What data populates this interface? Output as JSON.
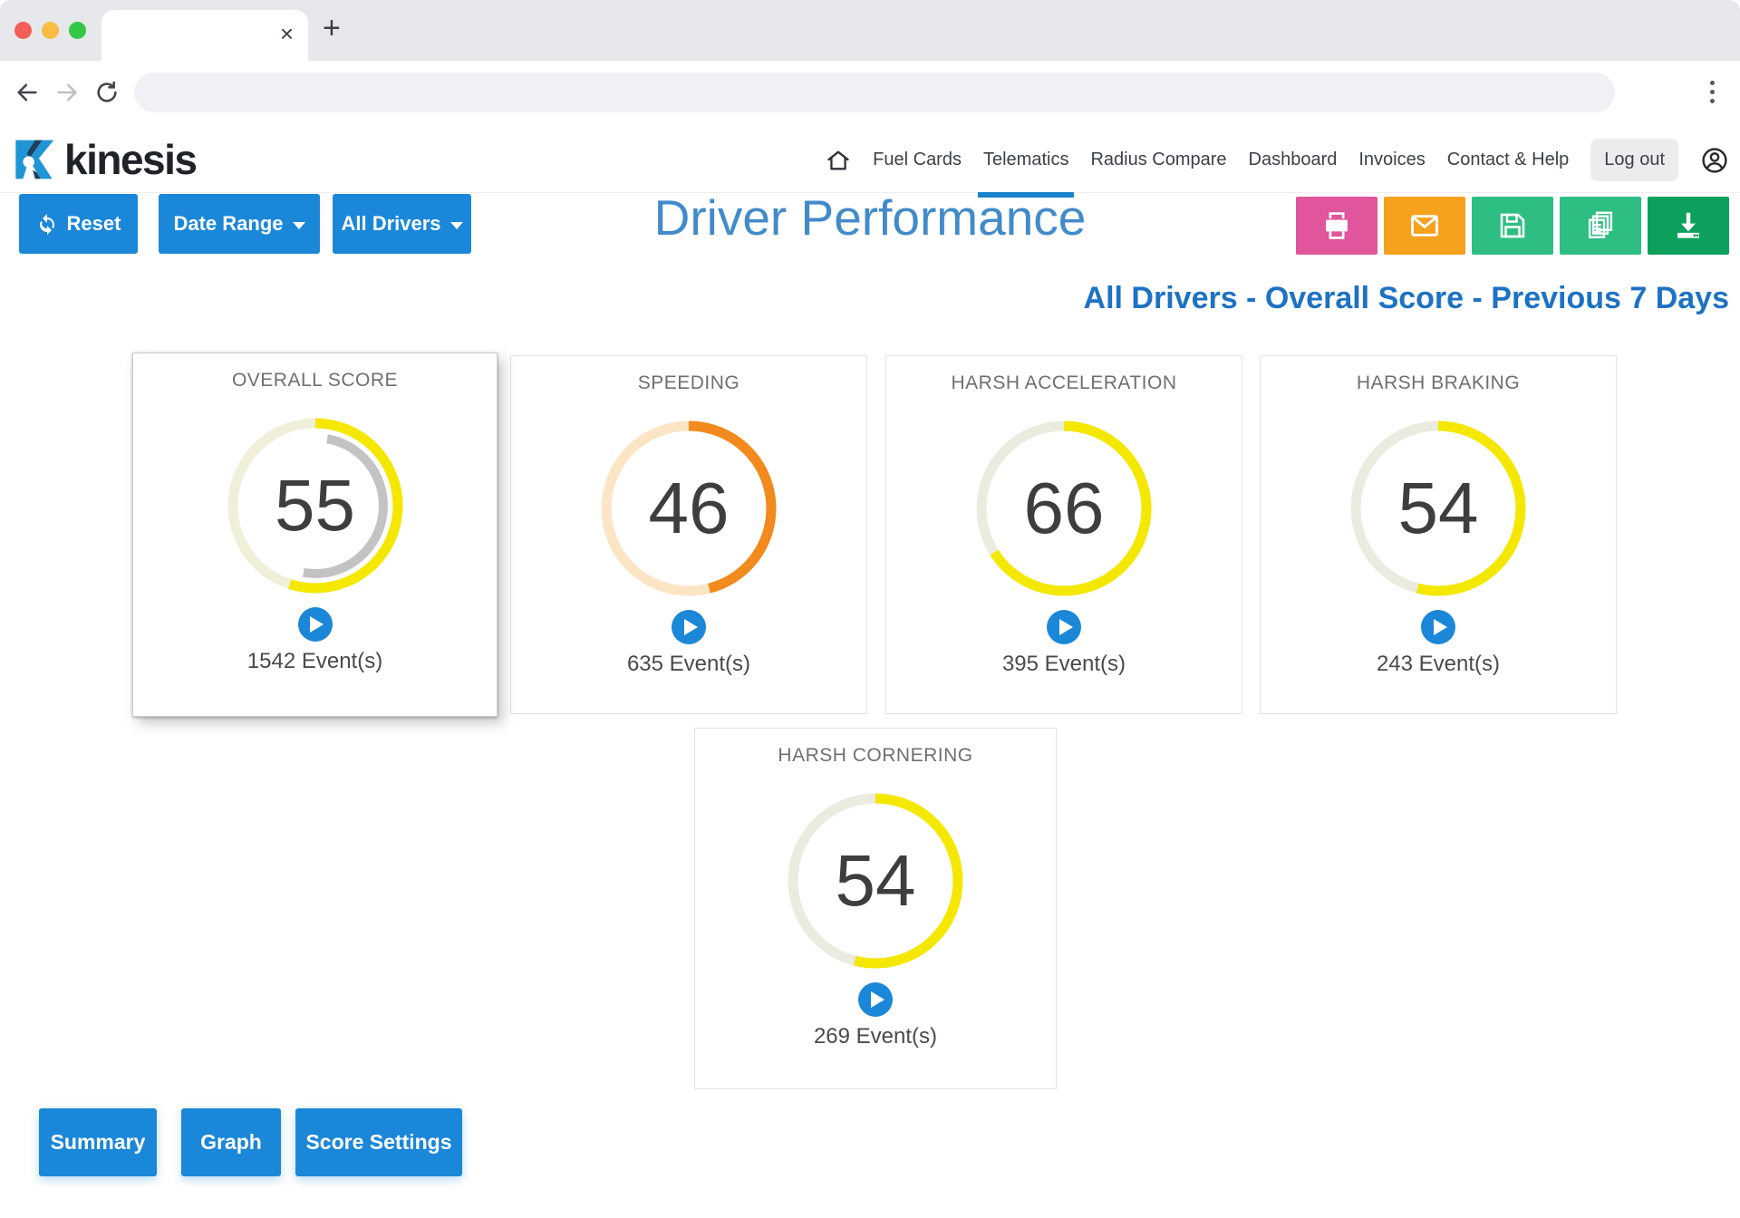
{
  "browser": {
    "tab_close_label": "×",
    "new_tab_label": "+"
  },
  "brand": {
    "name": "kinesis"
  },
  "nav": {
    "items": [
      {
        "label": "Fuel Cards",
        "active": false,
        "pill": false
      },
      {
        "label": "Telematics",
        "active": true,
        "pill": false
      },
      {
        "label": "Radius Compare",
        "active": false,
        "pill": false
      },
      {
        "label": "Dashboard",
        "active": false,
        "pill": false
      },
      {
        "label": "Invoices",
        "active": false,
        "pill": false
      },
      {
        "label": "Contact & Help",
        "active": false,
        "pill": false
      },
      {
        "label": "Log out",
        "active": false,
        "pill": true
      }
    ]
  },
  "toolbar": {
    "reset_label": "Reset",
    "date_range_label": "Date Range",
    "all_drivers_label": "All Drivers"
  },
  "page": {
    "title": "Driver Performance",
    "subtitle": "All Drivers - Overall Score - Previous 7 Days"
  },
  "actions": [
    {
      "name": "print",
      "color": "#e0559b"
    },
    {
      "name": "email",
      "color": "#f6a21e"
    },
    {
      "name": "save",
      "color": "#2ebe82"
    },
    {
      "name": "copy",
      "color": "#2ebe82"
    },
    {
      "name": "download",
      "color": "#0da05c"
    }
  ],
  "accent": {
    "blue": "#1b87d8",
    "title_blue": "#428bca",
    "subtitle_blue": "#1d72c4",
    "active_underline": "#1c82cb"
  },
  "footer": {
    "summary_label": "Summary",
    "graph_label": "Graph",
    "score_settings_label": "Score Settings"
  },
  "chart_data": {
    "type": "gauge",
    "max": 100,
    "gauges": [
      {
        "label": "OVERALL SCORE",
        "value": 55,
        "events": 1542,
        "events_label": "1542 Event(s)",
        "ring_color": "#f5e800",
        "track_color": "#f0efd9",
        "inner_arc_pct": 50,
        "inner_arc_start_deg": 10,
        "inner_arc_color": "#c3c3c3",
        "selected": true
      },
      {
        "label": "SPEEDING",
        "value": 46,
        "events": 635,
        "events_label": "635 Event(s)",
        "ring_color": "#f28a1d",
        "track_color": "#fbe5c4",
        "inner_arc_pct": null,
        "selected": false
      },
      {
        "label": "HARSH ACCELERATION",
        "value": 66,
        "events": 395,
        "events_label": "395 Event(s)",
        "ring_color": "#f5e800",
        "track_color": "#ebebe0",
        "inner_arc_pct": null,
        "selected": false
      },
      {
        "label": "HARSH BRAKING",
        "value": 54,
        "events": 243,
        "events_label": "243 Event(s)",
        "ring_color": "#f5e800",
        "track_color": "#ebebe0",
        "inner_arc_pct": null,
        "selected": false
      },
      {
        "label": "HARSH CORNERING",
        "value": 54,
        "events": 269,
        "events_label": "269 Event(s)",
        "ring_color": "#f5e800",
        "track_color": "#ebebe0",
        "inner_arc_pct": null,
        "selected": false
      }
    ]
  }
}
